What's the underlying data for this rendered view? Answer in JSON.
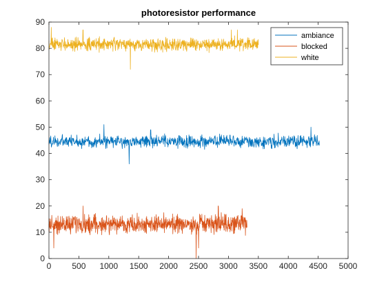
{
  "chart_data": {
    "type": "line",
    "title": "photoresistor performance",
    "xlabel": "",
    "ylabel": "",
    "xlim": [
      0,
      5000
    ],
    "ylim": [
      0,
      90
    ],
    "xticks": [
      0,
      500,
      1000,
      1500,
      2000,
      2500,
      3000,
      3500,
      4000,
      4500,
      5000
    ],
    "yticks": [
      0,
      10,
      20,
      30,
      40,
      50,
      60,
      70,
      80,
      90
    ],
    "grid": false,
    "legend_position": "top-right",
    "series": [
      {
        "name": "ambiance",
        "color": "#0072BD",
        "x_range": [
          0,
          4520
        ],
        "mean": 44.5,
        "noise_range": [
          41,
          48
        ],
        "spikes": [
          [
            920,
            51
          ],
          [
            1340,
            36
          ],
          [
            1700,
            49
          ],
          [
            4380,
            50
          ]
        ]
      },
      {
        "name": "blocked",
        "color": "#D95319",
        "x_range": [
          0,
          3310
        ],
        "mean": 13,
        "noise_range": [
          8,
          18
        ],
        "spikes": [
          [
            80,
            4
          ],
          [
            570,
            20
          ],
          [
            2460,
            0
          ],
          [
            2500,
            4
          ],
          [
            2830,
            20
          ],
          [
            3230,
            19
          ]
        ]
      },
      {
        "name": "white",
        "color": "#EDB120",
        "x_range": [
          0,
          3500
        ],
        "mean": 81.5,
        "noise_range": [
          78,
          85
        ],
        "spikes": [
          [
            40,
            88
          ],
          [
            570,
            87
          ],
          [
            1360,
            72
          ],
          [
            3050,
            87
          ],
          [
            3150,
            87
          ]
        ]
      }
    ]
  }
}
